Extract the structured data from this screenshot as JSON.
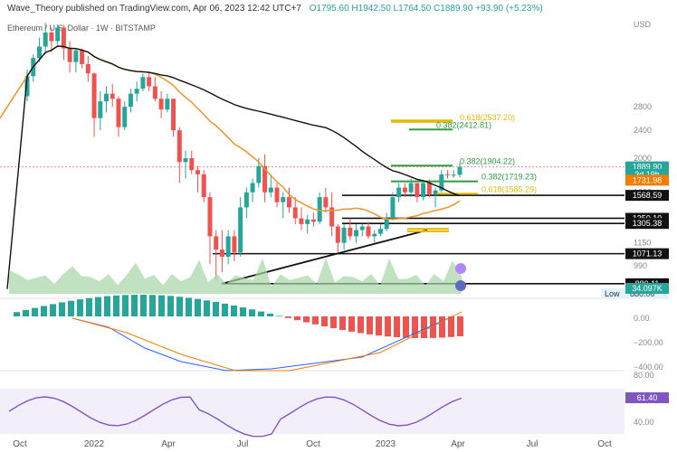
{
  "header": {
    "publisher": "Wave_Theory published on TradingView.com, Apr 06, 2023 12:42 UTC+7",
    "ohlc": "O1795.60  H1942.50  L1764.50  C1889.90  +93.90 (+5.23%)",
    "symbol": "Ethereum / U.S. Dollar · 1W · BITSTAMP"
  },
  "chart_data": {
    "type": "candlestick",
    "currency": "USD",
    "x_ticks": [
      "Oct",
      "2022",
      "Apr",
      "Jul",
      "Oct",
      "2023",
      "Apr",
      "Jul",
      "Oct"
    ],
    "y_ticks": [
      990,
      1150,
      1350,
      1600,
      2000,
      2400,
      2800
    ],
    "price_tags": [
      {
        "label": "1889.90",
        "value": 1889.9,
        "color": "#26a69a"
      },
      {
        "label": "3d 19h",
        "value": 1800,
        "color": "#26a69a"
      },
      {
        "label": "1731.98",
        "value": 1731.98,
        "color": "#f57c00"
      },
      {
        "label": "1568.59",
        "value": 1568.59,
        "color": "#111111"
      },
      {
        "label": "1350.10",
        "value": 1350.1,
        "color": "#111111"
      },
      {
        "label": "1305.38",
        "value": 1305.38,
        "color": "#111111"
      },
      {
        "label": "1071.13",
        "value": 1071.13,
        "color": "#111111"
      },
      {
        "label": "880.11",
        "value": 880.11,
        "color": "#111111"
      }
    ],
    "low_label": "Low",
    "low_value": "880.00",
    "volume_label": "34.097K",
    "fib_labels": [
      {
        "text": "0.618(2537.20)",
        "value": 2537.2,
        "color": "#e6b800"
      },
      {
        "text": "0.382(2412.81)",
        "value": 2412.81,
        "color": "#2e9e3e"
      },
      {
        "text": "0.382(1904.22)",
        "value": 1904.22,
        "color": "#2e9e3e"
      },
      {
        "text": "0.382(1719.23)",
        "value": 1719.23,
        "color": "#2e9e3e"
      },
      {
        "text": "0.618(1585.29)",
        "value": 1585.29,
        "color": "#e6b800"
      }
    ],
    "macd_ticks": [
      "0.00",
      "−200.00",
      "−400.00"
    ],
    "rsi_ticks": [
      "80.00",
      "40.00"
    ],
    "rsi_value": "61.40",
    "candles": [
      [
        3000,
        3580,
        2900,
        3420
      ],
      [
        3420,
        3950,
        3300,
        3850
      ],
      [
        3850,
        4400,
        3750,
        4150
      ],
      [
        4150,
        4850,
        3950,
        4550
      ],
      [
        4550,
        4700,
        4000,
        4300
      ],
      [
        4300,
        4800,
        4200,
        4700
      ],
      [
        4700,
        4780,
        3800,
        4100
      ],
      [
        4100,
        4300,
        3500,
        3750
      ],
      [
        3750,
        4100,
        3500,
        4050
      ],
      [
        4050,
        4100,
        3600,
        3700
      ],
      [
        3700,
        3900,
        3300,
        3480
      ],
      [
        3480,
        3500,
        2300,
        2600
      ],
      [
        2600,
        3100,
        2400,
        2900
      ],
      [
        2900,
        3200,
        2700,
        3050
      ],
      [
        3050,
        3250,
        2800,
        2950
      ],
      [
        2950,
        3000,
        2300,
        2450
      ],
      [
        2450,
        2900,
        2400,
        2800
      ],
      [
        2800,
        3150,
        2700,
        3050
      ],
      [
        3050,
        3300,
        2900,
        3150
      ],
      [
        3150,
        3480,
        3100,
        3400
      ],
      [
        3400,
        3500,
        3100,
        3200
      ],
      [
        3200,
        3400,
        2900,
        2950
      ],
      [
        2950,
        3100,
        2600,
        2750
      ],
      [
        2750,
        3050,
        2700,
        2950
      ],
      [
        2950,
        2950,
        2300,
        2400
      ],
      [
        2400,
        2450,
        1700,
        1950
      ],
      [
        1950,
        2100,
        1750,
        2000
      ],
      [
        2000,
        2100,
        1800,
        1850
      ],
      [
        1850,
        1900,
        1600,
        1800
      ],
      [
        1800,
        1850,
        1500,
        1550
      ],
      [
        1550,
        1600,
        1000,
        1200
      ],
      [
        1200,
        1250,
        900,
        1100
      ],
      [
        1100,
        1250,
        950,
        1050
      ],
      [
        1050,
        1250,
        1000,
        1200
      ],
      [
        1200,
        1250,
        1020,
        1080
      ],
      [
        1080,
        1550,
        1050,
        1450
      ],
      [
        1450,
        1650,
        1350,
        1600
      ],
      [
        1600,
        1750,
        1500,
        1700
      ],
      [
        1700,
        2000,
        1650,
        1900
      ],
      [
        1900,
        2050,
        1500,
        1600
      ],
      [
        1600,
        1800,
        1550,
        1650
      ],
      [
        1650,
        1700,
        1450,
        1500
      ],
      [
        1500,
        1600,
        1350,
        1550
      ],
      [
        1550,
        1650,
        1400,
        1450
      ],
      [
        1450,
        1550,
        1300,
        1350
      ],
      [
        1350,
        1450,
        1250,
        1300
      ],
      [
        1300,
        1380,
        1220,
        1340
      ],
      [
        1340,
        1400,
        1280,
        1320
      ],
      [
        1320,
        1600,
        1300,
        1550
      ],
      [
        1550,
        1650,
        1400,
        1450
      ],
      [
        1450,
        1600,
        1200,
        1280
      ],
      [
        1280,
        1300,
        1080,
        1150
      ],
      [
        1150,
        1300,
        1100,
        1270
      ],
      [
        1270,
        1350,
        1170,
        1200
      ],
      [
        1200,
        1300,
        1150,
        1250
      ],
      [
        1250,
        1300,
        1200,
        1280
      ],
      [
        1280,
        1320,
        1180,
        1200
      ],
      [
        1200,
        1250,
        1150,
        1220
      ],
      [
        1220,
        1300,
        1200,
        1260
      ],
      [
        1260,
        1400,
        1240,
        1350
      ],
      [
        1350,
        1600,
        1330,
        1550
      ],
      [
        1550,
        1700,
        1500,
        1650
      ],
      [
        1650,
        1700,
        1550,
        1600
      ],
      [
        1600,
        1750,
        1550,
        1700
      ],
      [
        1700,
        1700,
        1500,
        1550
      ],
      [
        1550,
        1720,
        1520,
        1700
      ],
      [
        1700,
        1740,
        1550,
        1580
      ],
      [
        1580,
        1650,
        1450,
        1620
      ],
      [
        1620,
        1850,
        1600,
        1800
      ],
      [
        1800,
        1850,
        1750,
        1790
      ],
      [
        1790,
        1850,
        1760,
        1795
      ],
      [
        1795,
        1942,
        1764,
        1890
      ]
    ]
  }
}
